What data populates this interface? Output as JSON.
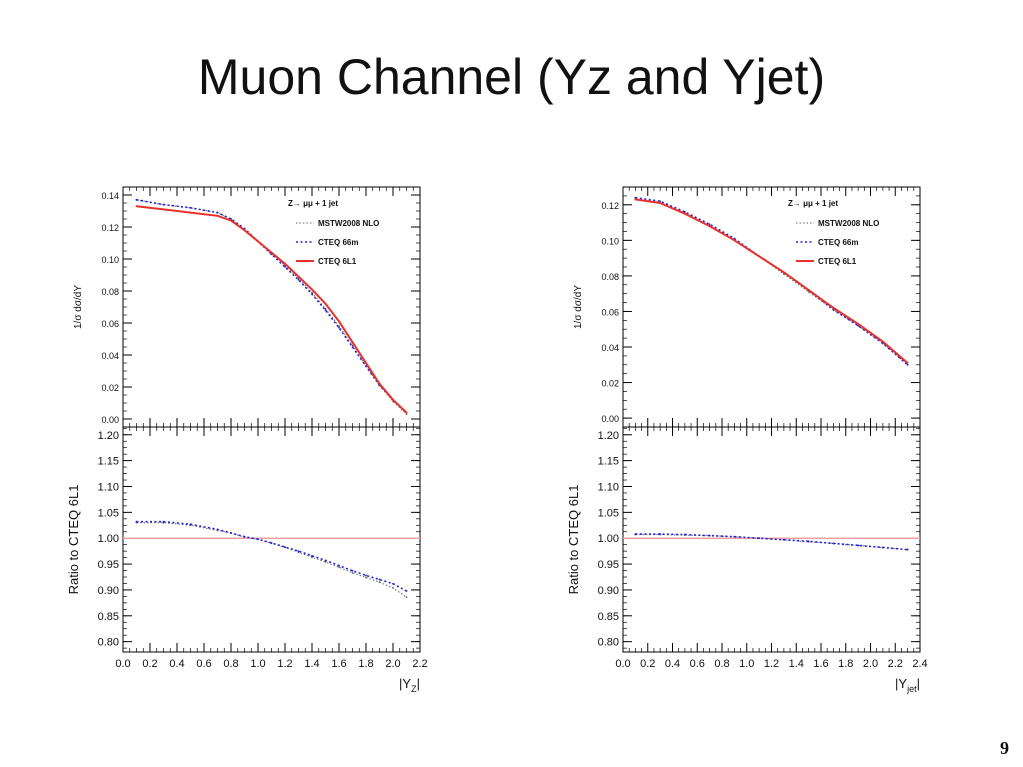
{
  "slide": {
    "title": "Muon Channel (Yz and Yjet)",
    "page_number": "9"
  },
  "colors": {
    "mstw": "#666666",
    "cteq66": "#2222dd",
    "cteq6l1": "#e8312a",
    "ratio_ref": "#f5a0a0"
  },
  "chart_data": [
    {
      "type": "line",
      "legend_title": "Z→ μμ + 1 jet",
      "legend_placement": "top-right",
      "xlabel": "|Y",
      "xlabel_sub": "Z",
      "xlim": [
        0,
        2.2
      ],
      "xticks": [
        "0.0",
        "0.2",
        "0.4",
        "0.6",
        "0.8",
        "1.0",
        "1.2",
        "1.4",
        "1.6",
        "1.8",
        "2.0",
        "2.2"
      ],
      "top": {
        "ylabel": "1/σ dσ/dY",
        "ylim": [
          -0.005,
          0.145
        ],
        "yticks": [
          "0.00",
          "0.02",
          "0.04",
          "0.06",
          "0.08",
          "0.10",
          "0.12",
          "0.14"
        ],
        "x": [
          0.1,
          0.3,
          0.5,
          0.7,
          0.8,
          0.9,
          1.0,
          1.1,
          1.2,
          1.3,
          1.4,
          1.5,
          1.6,
          1.7,
          1.8,
          1.9,
          2.0,
          2.1
        ],
        "series": [
          {
            "name": "MSTW2008 NLO",
            "style": "mstw",
            "values": [
              0.137,
              0.134,
              0.132,
              0.129,
              0.125,
              0.118,
              0.111,
              0.103,
              0.096,
              0.088,
              0.079,
              0.069,
              0.058,
              0.046,
              0.033,
              0.021,
              0.011,
              0.003
            ]
          },
          {
            "name": "CTEQ 66m",
            "style": "cteq66",
            "values": [
              0.137,
              0.134,
              0.132,
              0.129,
              0.125,
              0.119,
              0.111,
              0.103,
              0.095,
              0.087,
              0.078,
              0.068,
              0.057,
              0.045,
              0.033,
              0.021,
              0.012,
              0.004
            ]
          },
          {
            "name": "CTEQ 6L1",
            "style": "cteq6l1",
            "values": [
              0.133,
              0.131,
              0.129,
              0.127,
              0.124,
              0.118,
              0.111,
              0.104,
              0.097,
              0.089,
              0.081,
              0.072,
              0.061,
              0.048,
              0.035,
              0.022,
              0.012,
              0.004
            ]
          }
        ]
      },
      "bottom": {
        "ylabel": "Ratio to CTEQ 6L1",
        "ylim": [
          0.78,
          1.215
        ],
        "yticks": [
          "0.80",
          "0.85",
          "0.90",
          "0.95",
          "1.00",
          "1.05",
          "1.10",
          "1.15",
          "1.20"
        ],
        "reference": 1.0,
        "x": [
          0.1,
          0.3,
          0.5,
          0.7,
          0.8,
          0.9,
          1.0,
          1.1,
          1.2,
          1.3,
          1.4,
          1.5,
          1.6,
          1.7,
          1.8,
          1.9,
          2.0,
          2.1
        ],
        "series": [
          {
            "name": "MSTW2008 NLO",
            "style": "mstw",
            "values": [
              1.03,
              1.03,
              1.025,
              1.015,
              1.01,
              1.002,
              0.998,
              0.99,
              0.982,
              0.973,
              0.963,
              0.954,
              0.944,
              0.933,
              0.924,
              0.915,
              0.904,
              0.886
            ]
          },
          {
            "name": "CTEQ 66m",
            "style": "cteq66",
            "values": [
              1.032,
              1.032,
              1.027,
              1.017,
              1.01,
              1.003,
              0.998,
              0.991,
              0.983,
              0.975,
              0.966,
              0.957,
              0.947,
              0.937,
              0.928,
              0.92,
              0.912,
              0.898
            ]
          }
        ]
      }
    },
    {
      "type": "line",
      "legend_title": "Z→ μμ + 1 jet",
      "legend_placement": "top-right",
      "xlabel": "|Y",
      "xlabel_sub": "jet",
      "xlim": [
        0,
        2.4
      ],
      "xticks": [
        "0.0",
        "0.2",
        "0.4",
        "0.6",
        "0.8",
        "1.0",
        "1.2",
        "1.4",
        "1.6",
        "1.8",
        "2.0",
        "2.2",
        "2.4"
      ],
      "top": {
        "ylabel": "1/σ dσ/dY",
        "ylim": [
          -0.005,
          0.13
        ],
        "yticks": [
          "0.00",
          "0.02",
          "0.04",
          "0.06",
          "0.08",
          "0.10",
          "0.12"
        ],
        "x": [
          0.1,
          0.3,
          0.5,
          0.7,
          0.9,
          1.1,
          1.3,
          1.5,
          1.7,
          1.9,
          2.1,
          2.3
        ],
        "series": [
          {
            "name": "MSTW2008 NLO",
            "style": "mstw",
            "values": [
              0.123,
              0.121,
              0.115,
              0.108,
              0.1,
              0.091,
              0.081,
              0.071,
              0.061,
              0.052,
              0.042,
              0.03
            ]
          },
          {
            "name": "CTEQ 66m",
            "style": "cteq66",
            "values": [
              0.124,
              0.122,
              0.116,
              0.109,
              0.101,
              0.091,
              0.082,
              0.072,
              0.061,
              0.052,
              0.042,
              0.03
            ]
          },
          {
            "name": "CTEQ 6L1",
            "style": "cteq6l1",
            "values": [
              0.123,
              0.121,
              0.115,
              0.108,
              0.1,
              0.091,
              0.082,
              0.072,
              0.062,
              0.053,
              0.043,
              0.031
            ]
          }
        ]
      },
      "bottom": {
        "ylabel": "Ratio to CTEQ 6L1",
        "ylim": [
          0.78,
          1.215
        ],
        "yticks": [
          "0.80",
          "0.85",
          "0.90",
          "0.95",
          "1.00",
          "1.05",
          "1.10",
          "1.15",
          "1.20"
        ],
        "reference": 1.0,
        "x": [
          0.1,
          0.3,
          0.5,
          0.7,
          0.9,
          1.1,
          1.3,
          1.5,
          1.7,
          1.9,
          2.1,
          2.3
        ],
        "series": [
          {
            "name": "MSTW2008 NLO",
            "style": "mstw",
            "values": [
              1.007,
              1.007,
              1.006,
              1.005,
              1.003,
              1.0,
              0.997,
              0.993,
              0.99,
              0.986,
              0.982,
              0.978
            ]
          },
          {
            "name": "CTEQ 66m",
            "style": "cteq66",
            "values": [
              1.008,
              1.008,
              1.007,
              1.005,
              1.003,
              1.0,
              0.997,
              0.994,
              0.99,
              0.986,
              0.982,
              0.978
            ]
          }
        ]
      }
    }
  ]
}
